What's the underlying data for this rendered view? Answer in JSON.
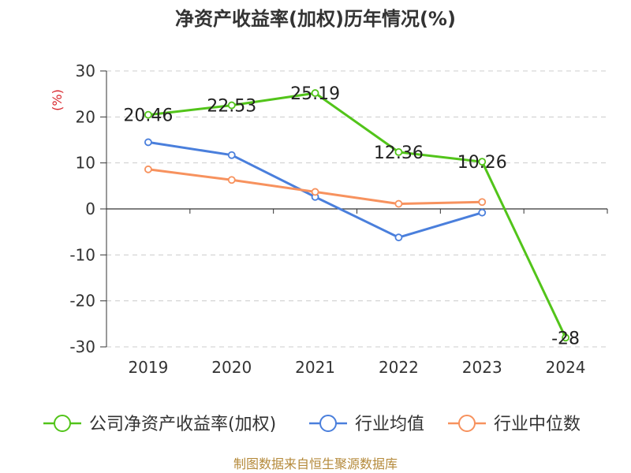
{
  "chart_data": {
    "type": "line",
    "title": "净资产收益率(加权)历年情况(%)",
    "ylabel": "(%)",
    "ylim": [
      -30,
      30
    ],
    "yticks": [
      30,
      20,
      10,
      0,
      -10,
      -20,
      -30
    ],
    "categories": [
      "2019",
      "2020",
      "2021",
      "2022",
      "2023",
      "2024"
    ],
    "series": [
      {
        "name": "公司净资产收益率(加权)",
        "color": "#52c41a",
        "values": [
          20.46,
          22.53,
          25.19,
          12.36,
          10.26,
          -28
        ],
        "labels": [
          "20.46",
          "22.53",
          "25.19",
          "12.36",
          "10.26",
          "-28"
        ]
      },
      {
        "name": "行业均值",
        "color": "#4a7fdc",
        "values": [
          14.5,
          11.7,
          2.6,
          -6.2,
          -0.8,
          null
        ]
      },
      {
        "name": "行业中位数",
        "color": "#f7925e",
        "values": [
          8.6,
          6.3,
          3.7,
          1.1,
          1.5,
          null
        ]
      }
    ],
    "grid": true,
    "legend": "bottom"
  },
  "source": "制图数据来自恒生聚源数据库"
}
